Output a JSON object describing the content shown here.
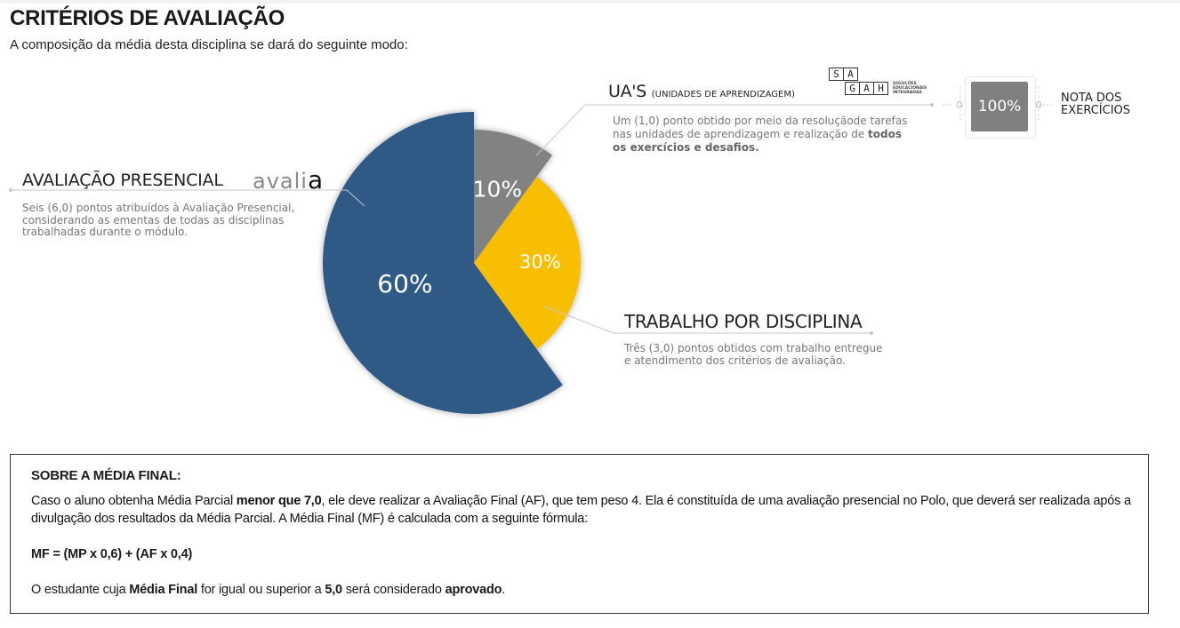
{
  "header": {
    "title": "CRITÉRIOS DE AVALIAÇÃO",
    "subtitle": "A composição da média desta disciplina se dará do seguinte modo:"
  },
  "chart_data": {
    "type": "pie",
    "series": [
      {
        "label": "UA'S",
        "value": 10,
        "display": "10%",
        "color": "#828282"
      },
      {
        "label": "TRABALHO POR DISCIPLINA",
        "value": 30,
        "display": "30%",
        "color": "#f8bf00"
      },
      {
        "label": "AVALIAÇÃO PRESENCIAL",
        "value": 60,
        "display": "60%",
        "color": "#2d5a85"
      }
    ]
  },
  "uas": {
    "title": "UA'S",
    "title_small": "(UNIDADES DE APRENDIZAGEM)",
    "desc_1": "Um (1,0) ponto obtido por meio da resoluçãode tarefas",
    "desc_2": "nas unidades de aprendizagem e realização de",
    "desc_bold": "todos os exercícios e desafios."
  },
  "sagah_logo": {
    "letters": [
      "S",
      "A",
      "G",
      "A",
      "H"
    ],
    "tagline": [
      "SOLUÇÕES",
      "EDUCACIONAIS",
      "INTEGRADAS"
    ]
  },
  "nota": {
    "value": "100%",
    "label_1": "NOTA DOS",
    "label_2": "EXERCÍCIOS"
  },
  "avaliacao": {
    "title": "AVALIAÇÃO PRESENCIAL",
    "logo_light": "avali",
    "logo_bold": "a",
    "desc_1": "Seis (6,0) pontos atribuídos à Avaliação Presencial,",
    "desc_2": "considerando as ementas de todas as disciplinas",
    "desc_3": "trabalhadas durante o módulo."
  },
  "trabalho": {
    "title": "TRABALHO POR DISCIPLINA",
    "desc_1": "Três (3,0) pontos obtidos com trabalho entregue",
    "desc_2": "e atendimento dos critérios de avaliação."
  },
  "media_final": {
    "heading": "SOBRE A MÉDIA FINAL:",
    "p1_a": "Caso o aluno obtenha Média Parcial ",
    "p1_b": "menor que 7,0",
    "p1_c": ", ele deve realizar a Avaliação Final (AF), que tem peso 4. Ela é constituída de uma avaliação presencial no Polo, que deverá ser realizada após a divulgação dos resultados da Média Parcial. A Média Final (MF) é calculada com a seguinte fórmula:",
    "formula": "MF = (MP x 0,6) + (AF x 0,4)",
    "p2_a": "O estudante cuja ",
    "p2_b": "Média Final",
    "p2_c": " for igual ou superior a ",
    "p2_d": "5,0",
    "p2_e": " será considerado ",
    "p2_f": "aprovado",
    "p2_g": "."
  }
}
